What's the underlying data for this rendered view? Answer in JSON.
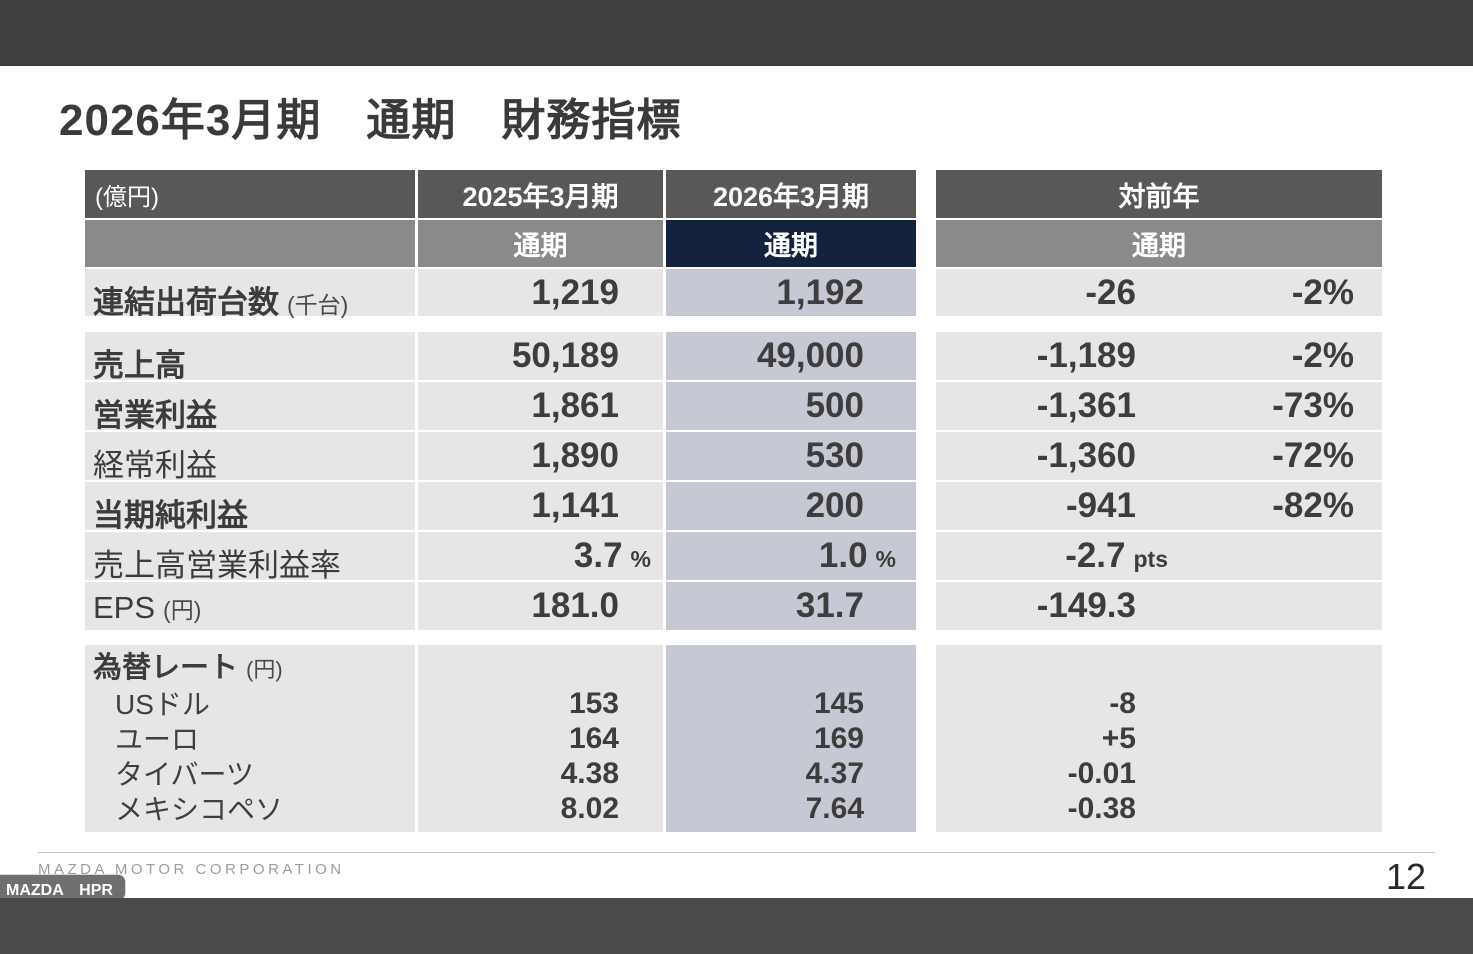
{
  "title": "2026年3月期　通期　財務指標",
  "table": {
    "header": {
      "unit": "(億円)",
      "col_2025": "2025年3月期",
      "col_2026": "2026年3月期",
      "col_yoy": "対前年",
      "sub_2025": "通期",
      "sub_2026": "通期",
      "sub_yoy": "通期"
    },
    "rows": [
      {
        "label": "連結出荷台数",
        "suffix": "(千台)",
        "v2025": "1,219",
        "v2026": "1,192",
        "change": "-26",
        "pct": "-2%"
      },
      {
        "label": "売上高",
        "v2025": "50,189",
        "v2026": "49,000",
        "change": "-1,189",
        "pct": "-2%"
      },
      {
        "label": "営業利益",
        "v2025": "1,861",
        "v2026": "500",
        "change": "-1,361",
        "pct": "-73%"
      },
      {
        "label": "経常利益",
        "v2025": "1,890",
        "v2026": "530",
        "change": "-1,360",
        "pct": "-72%"
      },
      {
        "label": "当期純利益",
        "v2025": "1,141",
        "v2026": "200",
        "change": "-941",
        "pct": "-82%"
      },
      {
        "label": "売上高営業利益率",
        "v2025": "3.7",
        "v2025_unit": "%",
        "v2026": "1.0",
        "v2026_unit": "%",
        "change": "-2.7",
        "change_unit": "pts"
      },
      {
        "label": "EPS",
        "suffix": "(円)",
        "v2025": "181.0",
        "v2026": "31.7",
        "change": "-149.3"
      }
    ],
    "forex": {
      "label": "為替レート",
      "suffix": "(円)",
      "rows": [
        {
          "name": "USドル",
          "v2025": "153",
          "v2026": "145",
          "change": "-8"
        },
        {
          "name": "ユーロ",
          "v2025": "164",
          "v2026": "169",
          "change": "+5"
        },
        {
          "name": "タイバーツ",
          "v2025": "4.38",
          "v2026": "4.37",
          "change": "-0.01"
        },
        {
          "name": "メキシコペソ",
          "v2025": "8.02",
          "v2026": "7.64",
          "change": "-0.38"
        }
      ]
    }
  },
  "footer": {
    "company": "MAZDA MOTOR CORPORATION",
    "page": "12"
  },
  "overlay": {
    "badge": "MAZDA　HPR"
  },
  "colors": {
    "accent_navy": "#13233e",
    "highlight_column": "#c6c9d4",
    "header_dark": "#595856",
    "header_gray": "#8a8a8a",
    "cell_gray": "#e7e6e4",
    "letterbox_bar": "#404043"
  }
}
